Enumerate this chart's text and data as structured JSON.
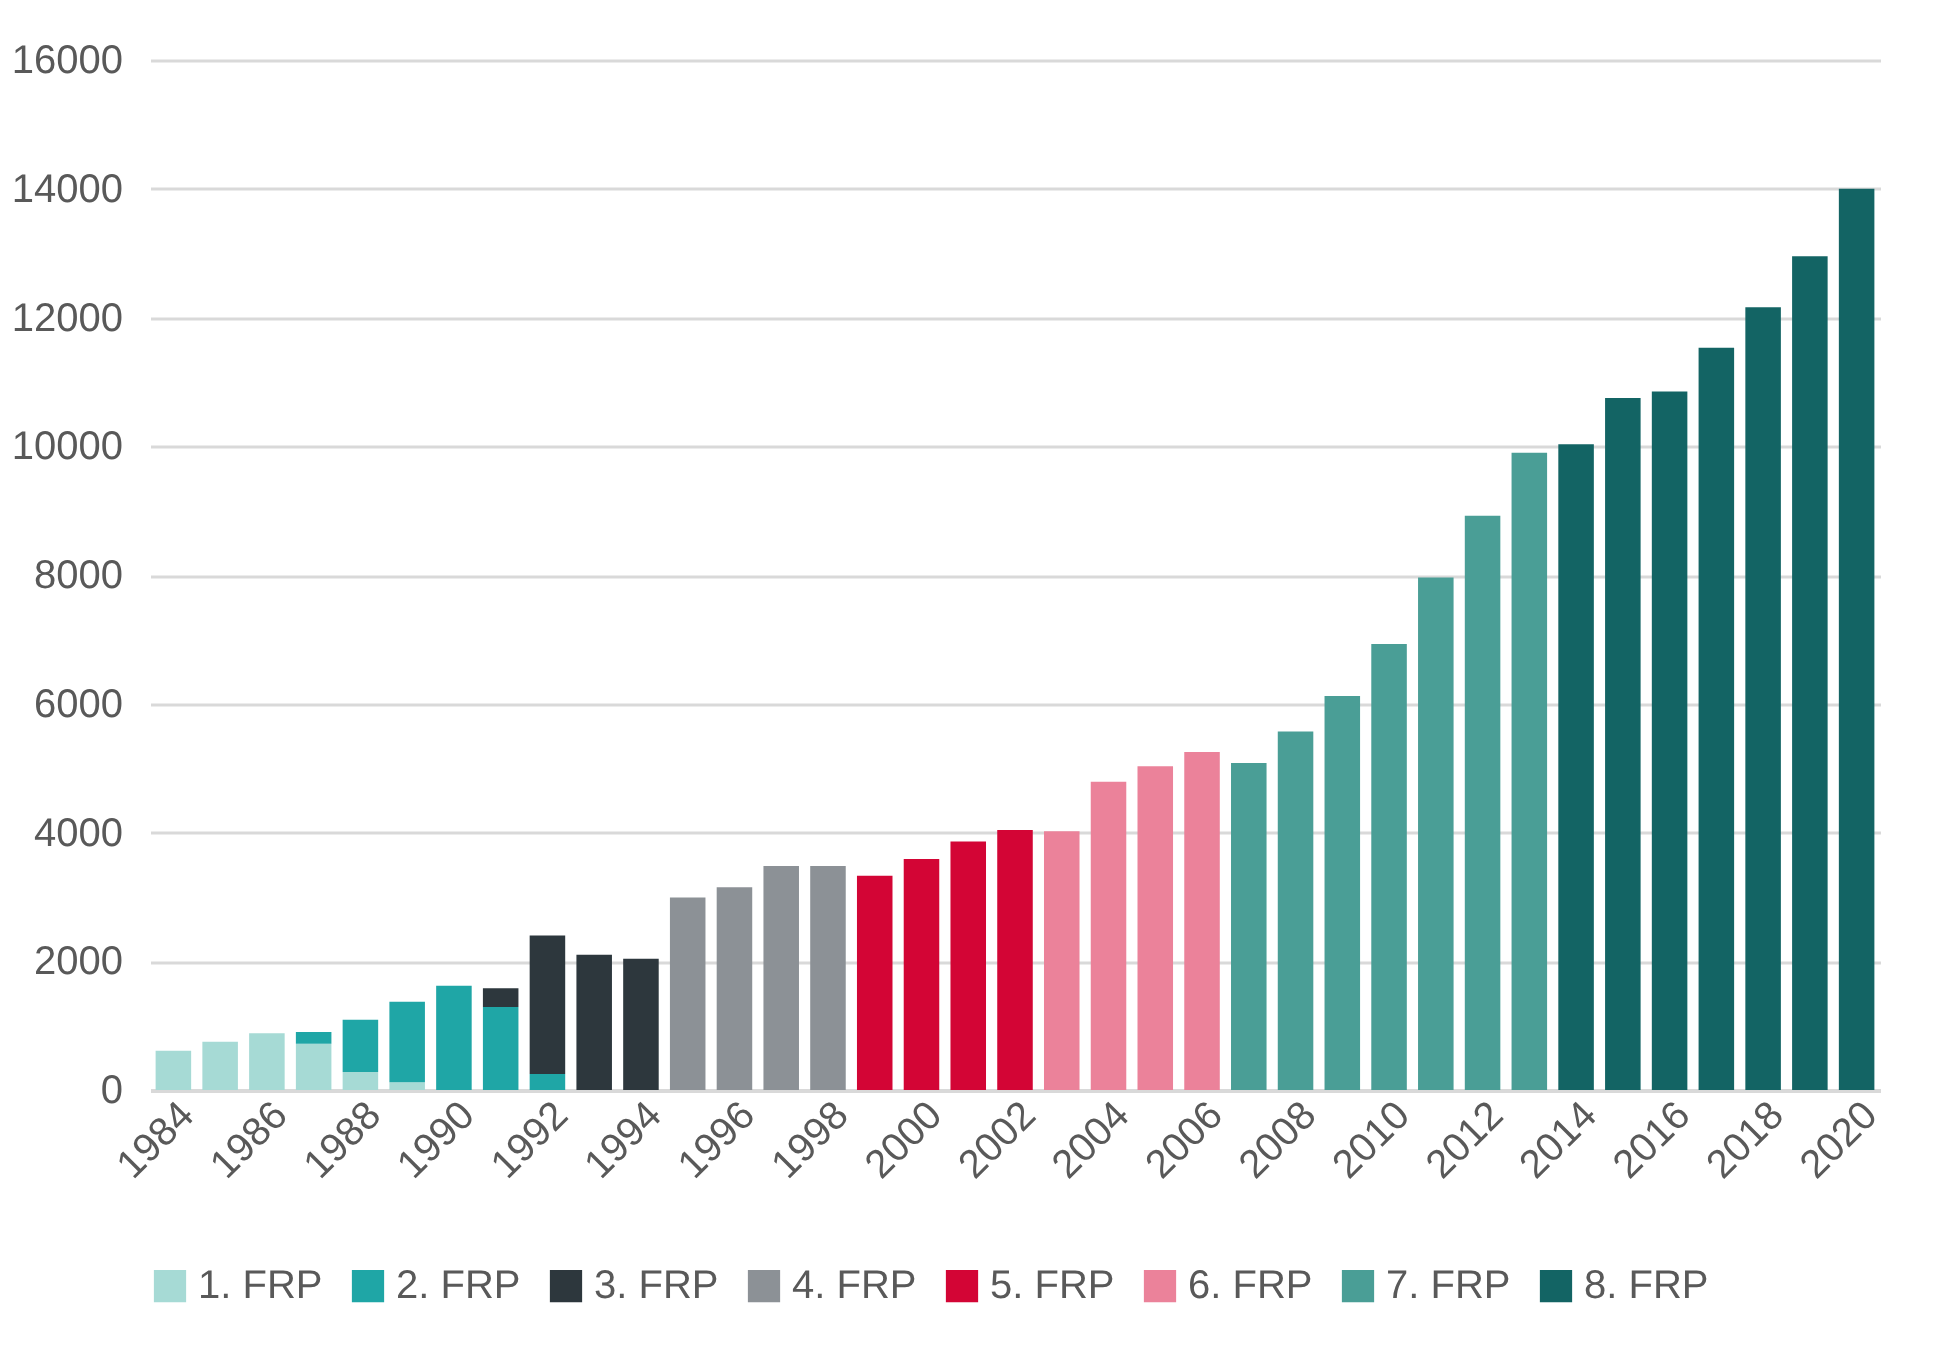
{
  "chart_data": {
    "type": "bar",
    "stacked": true,
    "categories": [
      "1984",
      null,
      "1986",
      null,
      "1988",
      null,
      "1990",
      null,
      "1992",
      null,
      "1994",
      null,
      "1996",
      null,
      "1998",
      null,
      "2000",
      null,
      "2002",
      null,
      "2004",
      null,
      "2006",
      null,
      "2008",
      null,
      "2010",
      null,
      "2012",
      null,
      "2014",
      null,
      "2016",
      null,
      "2018",
      null,
      "2020"
    ],
    "series": [
      {
        "name": "1. FRP",
        "color": "#a6dad5",
        "values": [
          610,
          750,
          880,
          720,
          280,
          120,
          null,
          null,
          null,
          null,
          null,
          null,
          null,
          null,
          null,
          null,
          null,
          null,
          null,
          null,
          null,
          null,
          null,
          null,
          null,
          null,
          null,
          null,
          null,
          null,
          null,
          null,
          null,
          null,
          null,
          null,
          null
        ]
      },
      {
        "name": "2. FRP",
        "color": "#1fa6a6",
        "values": [
          null,
          null,
          null,
          180,
          810,
          1250,
          1620,
          1290,
          250,
          null,
          null,
          null,
          null,
          null,
          null,
          null,
          null,
          null,
          null,
          null,
          null,
          null,
          null,
          null,
          null,
          null,
          null,
          null,
          null,
          null,
          null,
          null,
          null,
          null,
          null,
          null,
          null
        ]
      },
      {
        "name": "3. FRP",
        "color": "#2d373d",
        "values": [
          null,
          null,
          null,
          null,
          null,
          null,
          null,
          290,
          2150,
          2100,
          2040,
          null,
          null,
          null,
          null,
          null,
          null,
          null,
          null,
          null,
          null,
          null,
          null,
          null,
          null,
          null,
          null,
          null,
          null,
          null,
          null,
          null,
          null,
          null,
          null,
          null,
          null
        ]
      },
      {
        "name": "4. FRP",
        "color": "#8c9196",
        "values": [
          null,
          null,
          null,
          null,
          null,
          null,
          null,
          null,
          null,
          null,
          null,
          2990,
          3150,
          3480,
          3480,
          null,
          null,
          null,
          null,
          null,
          null,
          null,
          null,
          null,
          null,
          null,
          null,
          null,
          null,
          null,
          null,
          null,
          null,
          null,
          null,
          null,
          null
        ]
      },
      {
        "name": "5. FRP",
        "color": "#d30535",
        "values": [
          null,
          null,
          null,
          null,
          null,
          null,
          null,
          null,
          null,
          null,
          null,
          null,
          null,
          null,
          null,
          3330,
          3590,
          3860,
          4040,
          null,
          null,
          null,
          null,
          null,
          null,
          null,
          null,
          null,
          null,
          null,
          null,
          null,
          null,
          null,
          null,
          null,
          null
        ]
      },
      {
        "name": "6. FRP",
        "color": "#eb829a",
        "values": [
          null,
          null,
          null,
          null,
          null,
          null,
          null,
          null,
          null,
          null,
          null,
          null,
          null,
          null,
          null,
          null,
          null,
          null,
          null,
          4020,
          4790,
          5030,
          5250,
          null,
          null,
          null,
          null,
          null,
          null,
          null,
          null,
          null,
          null,
          null,
          null,
          null,
          null
        ]
      },
      {
        "name": "7. FRP",
        "color": "#4a9e96",
        "values": [
          null,
          null,
          null,
          null,
          null,
          null,
          null,
          null,
          null,
          null,
          null,
          null,
          null,
          null,
          null,
          null,
          null,
          null,
          null,
          null,
          null,
          null,
          null,
          5080,
          5570,
          6120,
          6930,
          7960,
          8920,
          9900,
          null,
          null,
          null,
          null,
          null,
          null,
          null
        ]
      },
      {
        "name": "8. FRP",
        "color": "#136464",
        "values": [
          null,
          null,
          null,
          null,
          null,
          null,
          null,
          null,
          null,
          null,
          null,
          null,
          null,
          null,
          null,
          null,
          null,
          null,
          null,
          null,
          null,
          null,
          null,
          null,
          null,
          null,
          null,
          null,
          null,
          null,
          10030,
          10750,
          10850,
          11530,
          12160,
          12950,
          14000
        ]
      }
    ],
    "ylim": [
      0,
      16000
    ],
    "yticks": [
      0,
      2000,
      4000,
      6000,
      8000,
      10000,
      12000,
      14000,
      16000
    ],
    "grid": "y",
    "legend": "bottom"
  }
}
